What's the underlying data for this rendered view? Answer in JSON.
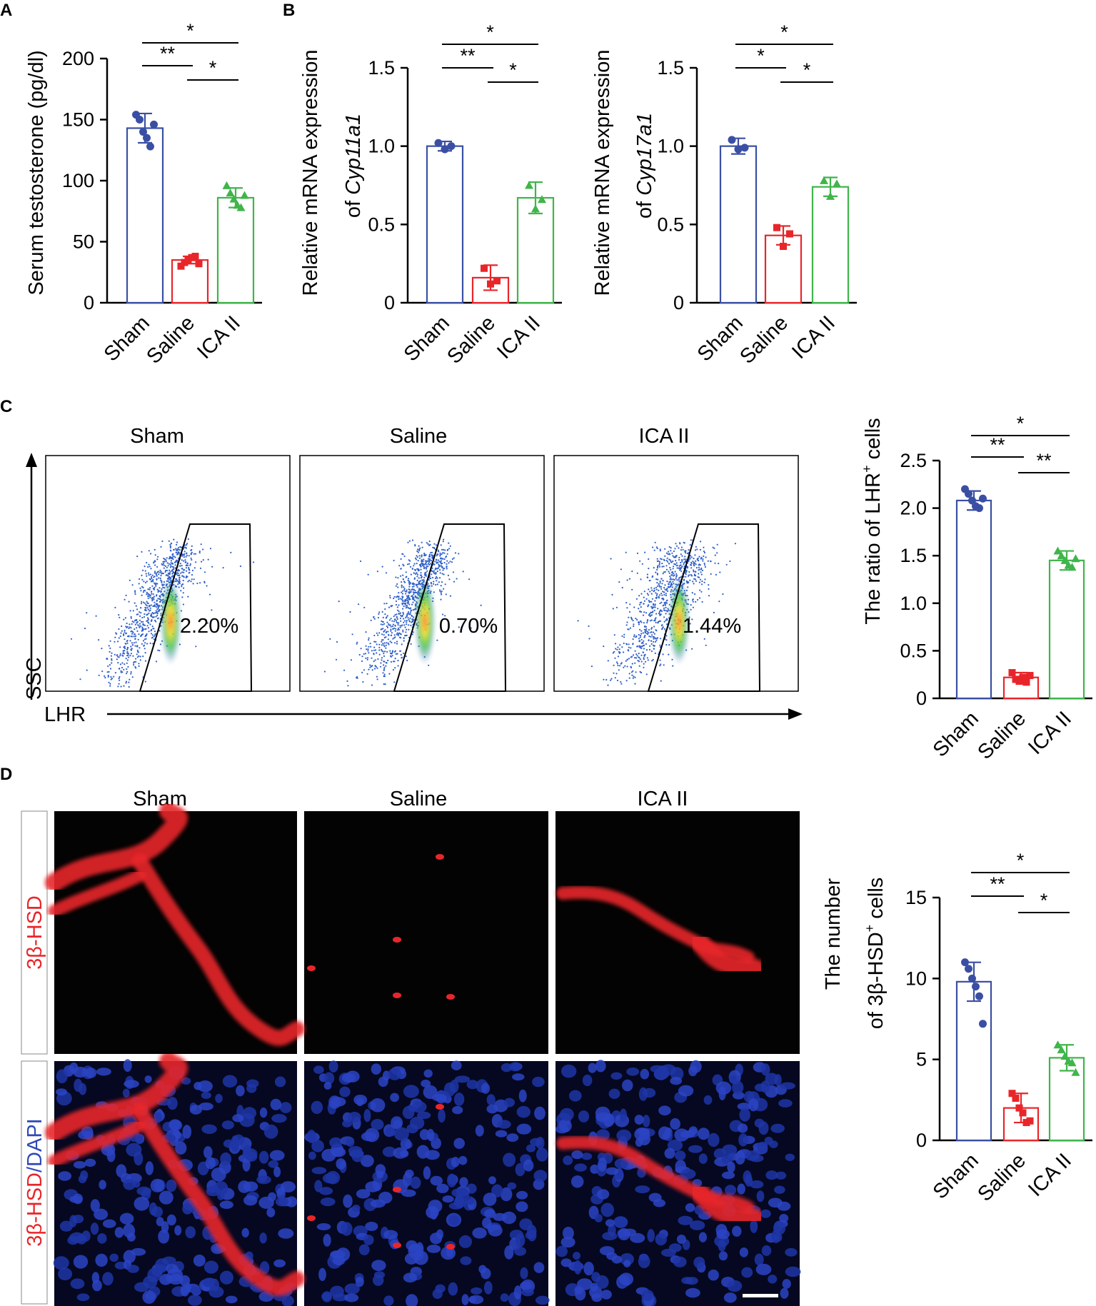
{
  "colors": {
    "sham": "#3a4fa3",
    "saline": "#e8262a",
    "ica": "#3fb54a"
  },
  "panel_labels": {
    "a": "A",
    "b": "B",
    "c": "C",
    "d": "D"
  },
  "group_labels": [
    "Sham",
    "Saline",
    "ICA II"
  ],
  "flow": {
    "y_axis": "SSC",
    "x_axis": "LHR",
    "panels": [
      {
        "title": "Sham",
        "percent": "2.20%"
      },
      {
        "title": "Saline",
        "percent": "0.70%"
      },
      {
        "title": "ICA II",
        "percent": "1.44%"
      }
    ]
  },
  "if_images": {
    "titles": [
      "Sham",
      "Saline",
      "ICA II"
    ],
    "row1_label": "3β-HSD",
    "row2_label_a": "3β-HSD",
    "row2_label_sep": "/",
    "row2_label_b": "DAPI",
    "colors": {
      "hsd": "#e8262a",
      "dapi": "#2f49b8"
    }
  },
  "chart_data": [
    {
      "id": "testosterone",
      "type": "bar",
      "panel": "A",
      "categories": [
        "Sham",
        "Saline",
        "ICA II"
      ],
      "values": [
        143,
        35,
        86
      ],
      "errors": [
        12,
        3,
        8
      ],
      "points": [
        [
          154,
          150,
          140,
          135,
          128,
          146
        ],
        [
          30,
          33,
          35,
          37,
          38,
          32
        ],
        [
          96,
          90,
          85,
          80,
          78,
          88
        ]
      ],
      "ylabel": "Serum testosterone (pg/dl)",
      "ylim": [
        0,
        200
      ],
      "yticks": [
        0,
        50,
        100,
        150,
        200
      ],
      "significance": [
        {
          "from": 0,
          "to": 1,
          "label": "**"
        },
        {
          "from": 1,
          "to": 2,
          "label": "*"
        },
        {
          "from": 0,
          "to": 2,
          "label": "*"
        }
      ]
    },
    {
      "id": "cyp11a1",
      "type": "bar",
      "panel": "B",
      "categories": [
        "Sham",
        "Saline",
        "ICA II"
      ],
      "values": [
        1.0,
        0.16,
        0.67
      ],
      "errors": [
        0.03,
        0.08,
        0.1
      ],
      "points": [
        [
          1.02,
          0.98,
          1.0
        ],
        [
          0.22,
          0.12,
          0.14
        ],
        [
          0.75,
          0.6,
          0.66
        ]
      ],
      "ylabel_line1": "Relative mRNA expression",
      "ylabel_line2_prefix": "of ",
      "ylabel_line2_gene": "Cyp11a1",
      "ylim": [
        0,
        1.5
      ],
      "yticks": [
        0,
        0.5,
        1.0,
        1.5
      ],
      "ytick_labels": [
        "0",
        "0.5",
        "1.0",
        "1.5"
      ],
      "significance": [
        {
          "from": 0,
          "to": 1,
          "label": "**"
        },
        {
          "from": 1,
          "to": 2,
          "label": "*"
        },
        {
          "from": 0,
          "to": 2,
          "label": "*"
        }
      ]
    },
    {
      "id": "cyp17a1",
      "type": "bar",
      "panel": "B",
      "categories": [
        "Sham",
        "Saline",
        "ICA II"
      ],
      "values": [
        1.0,
        0.43,
        0.74
      ],
      "errors": [
        0.05,
        0.06,
        0.06
      ],
      "points": [
        [
          1.04,
          0.98,
          0.99
        ],
        [
          0.48,
          0.36,
          0.44
        ],
        [
          0.78,
          0.68,
          0.76
        ]
      ],
      "ylabel_line1": "Relative mRNA expression",
      "ylabel_line2_prefix": "of ",
      "ylabel_line2_gene": "Cyp17a1",
      "ylim": [
        0,
        1.5
      ],
      "yticks": [
        0,
        0.5,
        1.0,
        1.5
      ],
      "ytick_labels": [
        "0",
        "0.5",
        "1.0",
        "1.5"
      ],
      "significance": [
        {
          "from": 0,
          "to": 1,
          "label": "*"
        },
        {
          "from": 1,
          "to": 2,
          "label": "*"
        },
        {
          "from": 0,
          "to": 2,
          "label": "*"
        }
      ]
    },
    {
      "id": "lhr_ratio",
      "type": "bar",
      "panel": "C",
      "categories": [
        "Sham",
        "Saline",
        "ICA II"
      ],
      "values": [
        2.08,
        0.22,
        1.45
      ],
      "errors": [
        0.1,
        0.05,
        0.1
      ],
      "points": [
        [
          2.2,
          2.15,
          2.08,
          2.02,
          2.0,
          2.1
        ],
        [
          0.27,
          0.2,
          0.18,
          0.22,
          0.17,
          0.24
        ],
        [
          1.55,
          1.5,
          1.45,
          1.4,
          1.38,
          1.47
        ]
      ],
      "ylabel_main": "The ratio of LHR",
      "ylabel_sup": "+",
      "ylabel_end": " cells",
      "ylim": [
        0,
        2.5
      ],
      "yticks": [
        0,
        0.5,
        1.0,
        1.5,
        2.0,
        2.5
      ],
      "ytick_labels": [
        "0",
        "0.5",
        "1.0",
        "1.5",
        "2.0",
        "2.5"
      ],
      "significance": [
        {
          "from": 0,
          "to": 1,
          "label": "**"
        },
        {
          "from": 1,
          "to": 2,
          "label": "**"
        },
        {
          "from": 0,
          "to": 2,
          "label": "*"
        }
      ]
    },
    {
      "id": "hsd_number",
      "type": "bar",
      "panel": "D",
      "categories": [
        "Sham",
        "Saline",
        "ICA II"
      ],
      "values": [
        9.8,
        2.0,
        5.1
      ],
      "errors": [
        1.2,
        0.9,
        0.8
      ],
      "points": [
        [
          11,
          10.6,
          10,
          9.5,
          8.9,
          7.2
        ],
        [
          2.9,
          2.6,
          2.0,
          1.7,
          1.1,
          1.2
        ],
        [
          5.9,
          5.6,
          5.2,
          4.9,
          4.8,
          4.2
        ]
      ],
      "ylabel_line1": "The number",
      "ylabel_line2": "of 3β-HSD",
      "ylabel_sup": "+",
      "ylabel_end": " cells",
      "ylim": [
        0,
        15
      ],
      "yticks": [
        0,
        5,
        10,
        15
      ],
      "ytick_labels": [
        "0",
        "5",
        "10",
        "15"
      ],
      "significance": [
        {
          "from": 0,
          "to": 1,
          "label": "**"
        },
        {
          "from": 1,
          "to": 2,
          "label": "*"
        },
        {
          "from": 0,
          "to": 2,
          "label": "*"
        }
      ]
    }
  ]
}
